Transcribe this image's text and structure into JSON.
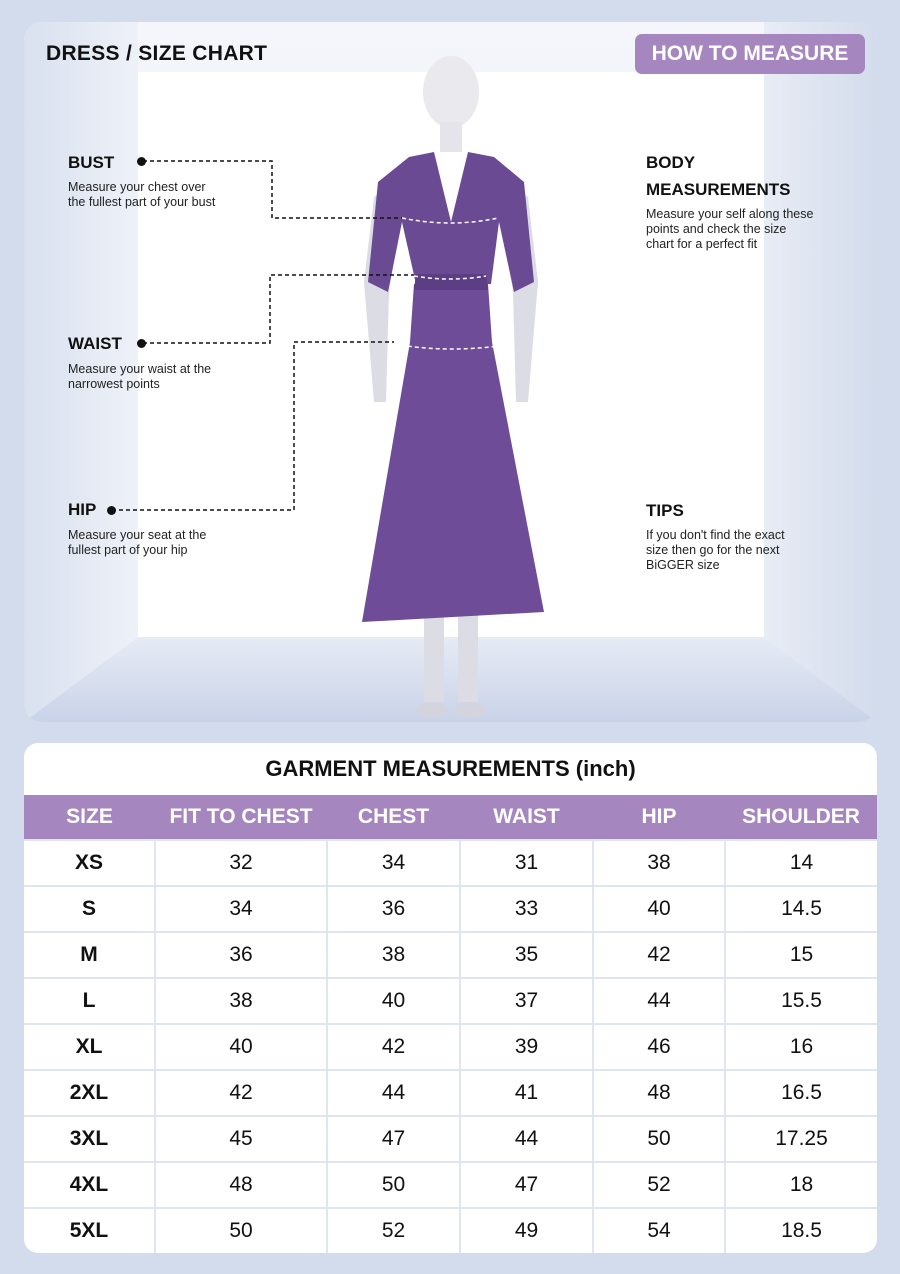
{
  "header": {
    "title": "DRESS / SIZE CHART",
    "how_to_measure": "HOW TO MEASURE"
  },
  "guide": {
    "bust": {
      "label": "BUST",
      "desc": "Measure your chest over the fullest part of your bust"
    },
    "waist": {
      "label": "WAIST",
      "desc": "Measure your waist at the narrowest points"
    },
    "hip": {
      "label": "HIP",
      "desc": "Measure your seat at the fullest part of your hip"
    },
    "body": {
      "label1": "BODY",
      "label2": "MEASUREMENTS",
      "desc": "Measure your self along these points and check the size chart for a perfect fit"
    },
    "tips": {
      "label": "TIPS",
      "desc": "If you don't find the exact size then go for the next BiGGER size"
    }
  },
  "colors": {
    "accent": "#a686bf",
    "dress": "#6b4a94",
    "background": "#d3dcec"
  },
  "table": {
    "caption": "GARMENT MEASUREMENTS (inch)",
    "headers": [
      "SIZE",
      "FIT TO CHEST",
      "CHEST",
      "WAIST",
      "HIP",
      "SHOULDER"
    ],
    "rows": [
      [
        "XS",
        "32",
        "34",
        "31",
        "38",
        "14"
      ],
      [
        "S",
        "34",
        "36",
        "33",
        "40",
        "14.5"
      ],
      [
        "M",
        "36",
        "38",
        "35",
        "42",
        "15"
      ],
      [
        "L",
        "38",
        "40",
        "37",
        "44",
        "15.5"
      ],
      [
        "XL",
        "40",
        "42",
        "39",
        "46",
        "16"
      ],
      [
        "2XL",
        "42",
        "44",
        "41",
        "48",
        "16.5"
      ],
      [
        "3XL",
        "45",
        "47",
        "44",
        "50",
        "17.25"
      ],
      [
        "4XL",
        "48",
        "50",
        "47",
        "52",
        "18"
      ],
      [
        "5XL",
        "50",
        "52",
        "49",
        "54",
        "18.5"
      ]
    ]
  }
}
